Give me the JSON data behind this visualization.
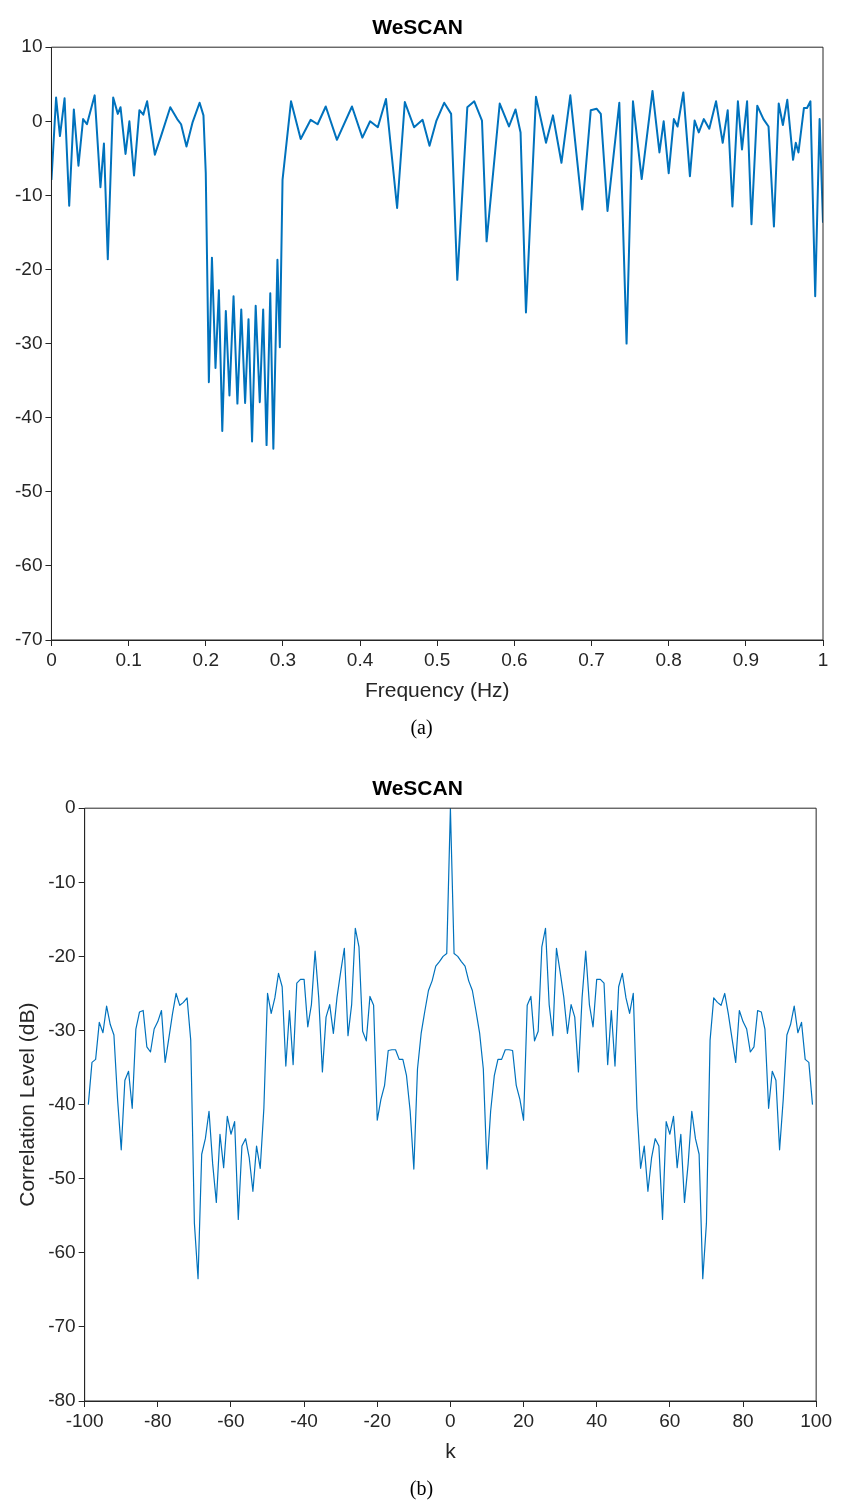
{
  "chart_data": [
    {
      "type": "line",
      "title": "WeSCAN",
      "xlabel": "Frequency (Hz)",
      "annotations": [
        "(a)"
      ],
      "marker": "none",
      "grid": false,
      "legend": false,
      "xlim": [
        0,
        1
      ],
      "xticks": [
        0,
        0.1,
        0.2,
        0.3,
        0.4,
        0.5,
        0.6,
        0.7,
        0.8,
        0.9,
        1
      ],
      "ylim": [
        -70,
        10
      ],
      "yticks": [
        -70,
        -60,
        -50,
        -40,
        -30,
        -20,
        -10,
        0,
        10
      ],
      "series": [
        {
          "color": "#0072bd",
          "x": [
            0,
            0.006,
            0.011,
            0.017,
            0.023,
            0.029,
            0.035,
            0.041,
            0.046,
            0.056,
            0.0635,
            0.068,
            0.073,
            0.08,
            0.086,
            0.0895,
            0.096,
            0.101,
            0.107,
            0.114,
            0.119,
            0.124,
            0.134,
            0.142,
            0.154,
            0.163,
            0.168,
            0.175,
            0.183,
            0.192,
            0.197,
            0.2,
            0.204,
            0.208,
            0.2126,
            0.217,
            0.2214,
            0.226,
            0.2307,
            0.236,
            0.241,
            0.246,
            0.251,
            0.2554,
            0.26,
            0.2647,
            0.27,
            0.2744,
            0.2788,
            0.2836,
            0.2876,
            0.2929,
            0.296,
            0.2995,
            0.3105,
            0.323,
            0.336,
            0.345,
            0.3555,
            0.37,
            0.3895,
            0.403,
            0.413,
            0.423,
            0.4336,
            0.448,
            0.458,
            0.47,
            0.481,
            0.49,
            0.499,
            0.509,
            0.518,
            0.526,
            0.539,
            0.548,
            0.558,
            0.564,
            0.581,
            0.593,
            0.6015,
            0.608,
            0.615,
            0.628,
            0.641,
            0.65,
            0.661,
            0.6725,
            0.688,
            0.699,
            0.7065,
            0.712,
            0.7207,
            0.736,
            0.7454,
            0.7537,
            0.765,
            0.779,
            0.788,
            0.7935,
            0.8,
            0.8067,
            0.8115,
            0.819,
            0.8275,
            0.8336,
            0.839,
            0.8455,
            0.8526,
            0.8614,
            0.87,
            0.8765,
            0.8826,
            0.8897,
            0.895,
            0.9016,
            0.9073,
            0.9148,
            0.9228,
            0.9294,
            0.9364,
            0.9426,
            0.948,
            0.9537,
            0.9612,
            0.9647,
            0.9682,
            0.9753,
            0.9793,
            0.9837,
            0.9899,
            0.9956,
            1
          ],
          "values": [
            -7.9,
            3.2,
            -2.0,
            3.1,
            -11.4,
            1.6,
            -6.0,
            0.3,
            -0.4,
            3.5,
            -8.9,
            -3.0,
            -18.6,
            3.2,
            1.0,
            1.9,
            -4.4,
            0.0,
            -7.3,
            1.5,
            0.9,
            2.7,
            -4.5,
            -2.0,
            1.9,
            0.3,
            -0.4,
            -3.4,
            -0.1,
            2.5,
            0.8,
            -7.0,
            -35.2,
            -18.4,
            -33.3,
            -22.8,
            -41.8,
            -25.6,
            -37.0,
            -23.6,
            -38.1,
            -25.4,
            -38.0,
            -26.7,
            -43.2,
            -24.9,
            -37.9,
            -25.4,
            -43.7,
            -23.2,
            -44.2,
            -18.7,
            -30.5,
            -7.9,
            2.7,
            -2.4,
            0.2,
            -0.4,
            2.0,
            -2.5,
            2.0,
            -2.2,
            0.0,
            -0.8,
            3.0,
            -11.7,
            2.6,
            -0.8,
            0.2,
            -3.3,
            0.1,
            2.5,
            1.0,
            -21.4,
            1.9,
            2.7,
            0.1,
            -16.2,
            2.4,
            -0.7,
            1.6,
            -1.5,
            -25.8,
            3.3,
            -2.9,
            0.8,
            -5.6,
            3.5,
            -11.9,
            1.5,
            1.7,
            1.0,
            -12.1,
            2.5,
            -30.0,
            2.7,
            -7.8,
            4.1,
            -4.2,
            0.0,
            -7.0,
            0.3,
            -0.7,
            3.9,
            -7.4,
            0.1,
            -1.5,
            0.3,
            -1.0,
            2.7,
            -2.9,
            1.5,
            -11.5,
            2.7,
            -3.8,
            2.7,
            -13.9,
            2.1,
            0.3,
            -0.7,
            -14.2,
            2.4,
            -0.5,
            2.9,
            -5.2,
            -2.9,
            -4.2,
            1.8,
            1.8,
            2.7,
            -23.6,
            0.3,
            -13.7
          ]
        }
      ]
    },
    {
      "type": "line",
      "title": "WeSCAN",
      "xlabel": "k",
      "ylabel": "Correlation Level (dB)",
      "annotations": [
        "(b)"
      ],
      "marker": "none",
      "grid": false,
      "legend": false,
      "xlim": [
        -100,
        100
      ],
      "xticks": [
        -100,
        -80,
        -60,
        -40,
        -20,
        0,
        20,
        40,
        60,
        80,
        100
      ],
      "ylim": [
        -80,
        0
      ],
      "yticks": [
        -80,
        -70,
        -60,
        -50,
        -40,
        -30,
        -20,
        -10,
        0
      ],
      "series": [
        {
          "color": "#0072bd",
          "x": [
            -99,
            -98,
            -97,
            -96,
            -95,
            -94,
            -93,
            -92,
            -91,
            -90,
            -89,
            -88,
            -87,
            -86,
            -85,
            -84,
            -83,
            -82,
            -81,
            -80,
            -79,
            -78,
            -77,
            -76,
            -75,
            -74,
            -73,
            -72,
            -71,
            -70,
            -69,
            -68,
            -67,
            -66,
            -65,
            -64,
            -63,
            -62,
            -61,
            -60,
            -59,
            -58,
            -57,
            -56,
            -55,
            -54,
            -53,
            -52,
            -51,
            -50,
            -49,
            -48,
            -47,
            -46,
            -45,
            -44,
            -43,
            -42,
            -41,
            -40,
            -39,
            -38,
            -37,
            -36,
            -35,
            -34,
            -33,
            -32,
            -31,
            -30,
            -29,
            -28,
            -27,
            -26,
            -25,
            -24,
            -23,
            -22,
            -21,
            -20,
            -19,
            -18,
            -17,
            -16,
            -15,
            -14,
            -13,
            -12,
            -11,
            -10,
            -9,
            -8,
            -7,
            -6,
            -5,
            -4,
            -3,
            -2,
            -1,
            0,
            1,
            2,
            3,
            4,
            5,
            6,
            7,
            8,
            9,
            10,
            11,
            12,
            13,
            14,
            15,
            16,
            17,
            18,
            19,
            20,
            21,
            22,
            23,
            24,
            25,
            26,
            27,
            28,
            29,
            30,
            31,
            32,
            33,
            34,
            35,
            36,
            37,
            38,
            39,
            40,
            41,
            42,
            43,
            44,
            45,
            46,
            47,
            48,
            49,
            50,
            51,
            52,
            53,
            54,
            55,
            56,
            57,
            58,
            59,
            60,
            61,
            62,
            63,
            64,
            65,
            66,
            67,
            68,
            69,
            70,
            71,
            72,
            73,
            74,
            75,
            76,
            77,
            78,
            79,
            80,
            81,
            82,
            83,
            84,
            85,
            86,
            87,
            88,
            89,
            90,
            91,
            92,
            93,
            94,
            95,
            96,
            97,
            98,
            99
          ],
          "values": [
            -40.0,
            -34.3,
            -33.9,
            -28.9,
            -30.3,
            -26.7,
            -29.2,
            -30.6,
            -39.3,
            -46.1,
            -36.7,
            -35.5,
            -40.5,
            -29.8,
            -27.5,
            -27.3,
            -32.2,
            -32.9,
            -29.8,
            -28.8,
            -27.3,
            -34.3,
            -31.1,
            -27.8,
            -25.0,
            -26.6,
            -26.2,
            -25.6,
            -31.3,
            -56.0,
            -63.5,
            -46.7,
            -44.6,
            -40.9,
            -48.0,
            -53.2,
            -44.0,
            -48.5,
            -41.6,
            -44.0,
            -42.3,
            -55.5,
            -45.6,
            -44.6,
            -47.2,
            -51.7,
            -45.6,
            -48.6,
            -40.5,
            -25.0,
            -27.7,
            -25.6,
            -22.3,
            -24.1,
            -34.8,
            -27.3,
            -34.6,
            -23.6,
            -23.1,
            -23.1,
            -29.5,
            -26.5,
            -19.3,
            -25.6,
            -35.6,
            -28.2,
            -26.5,
            -30.4,
            -25.5,
            -22.1,
            -18.9,
            -30.7,
            -26.5,
            -16.2,
            -18.7,
            -30.1,
            -31.4,
            -25.4,
            -26.6,
            -42.1,
            -39.3,
            -37.4,
            -32.7,
            -32.6,
            -32.6,
            -33.9,
            -33.9,
            -36.1,
            -40.9,
            -48.7,
            -35.2,
            -30.4,
            -27.4,
            -24.6,
            -23.3,
            -21.3,
            -20.7,
            -20.0,
            -19.6,
            0,
            -19.6,
            -20.0,
            -20.7,
            -21.3,
            -23.3,
            -24.6,
            -27.4,
            -30.4,
            -35.2,
            -48.7,
            -40.9,
            -36.1,
            -33.9,
            -33.9,
            -32.6,
            -32.6,
            -32.7,
            -37.4,
            -39.3,
            -42.1,
            -26.6,
            -25.4,
            -31.4,
            -30.1,
            -18.7,
            -16.2,
            -26.5,
            -30.7,
            -18.9,
            -22.1,
            -25.5,
            -30.4,
            -26.5,
            -28.2,
            -35.6,
            -25.6,
            -19.3,
            -26.5,
            -29.5,
            -23.1,
            -23.1,
            -23.6,
            -34.6,
            -27.3,
            -34.8,
            -24.1,
            -22.3,
            -25.6,
            -27.7,
            -25.0,
            -40.5,
            -48.6,
            -45.6,
            -51.7,
            -47.2,
            -44.6,
            -45.6,
            -55.5,
            -42.3,
            -44.0,
            -41.6,
            -48.5,
            -44.0,
            -53.2,
            -48.0,
            -40.9,
            -44.6,
            -46.7,
            -63.5,
            -56.0,
            -31.3,
            -25.6,
            -26.2,
            -26.6,
            -25.0,
            -27.8,
            -31.1,
            -34.3,
            -27.3,
            -28.8,
            -29.8,
            -32.9,
            -32.2,
            -27.3,
            -27.5,
            -29.8,
            -40.5,
            -35.5,
            -36.7,
            -46.1,
            -39.3,
            -30.6,
            -29.2,
            -26.7,
            -30.3,
            -28.9,
            -33.9,
            -34.3,
            -40.0
          ]
        }
      ]
    }
  ]
}
